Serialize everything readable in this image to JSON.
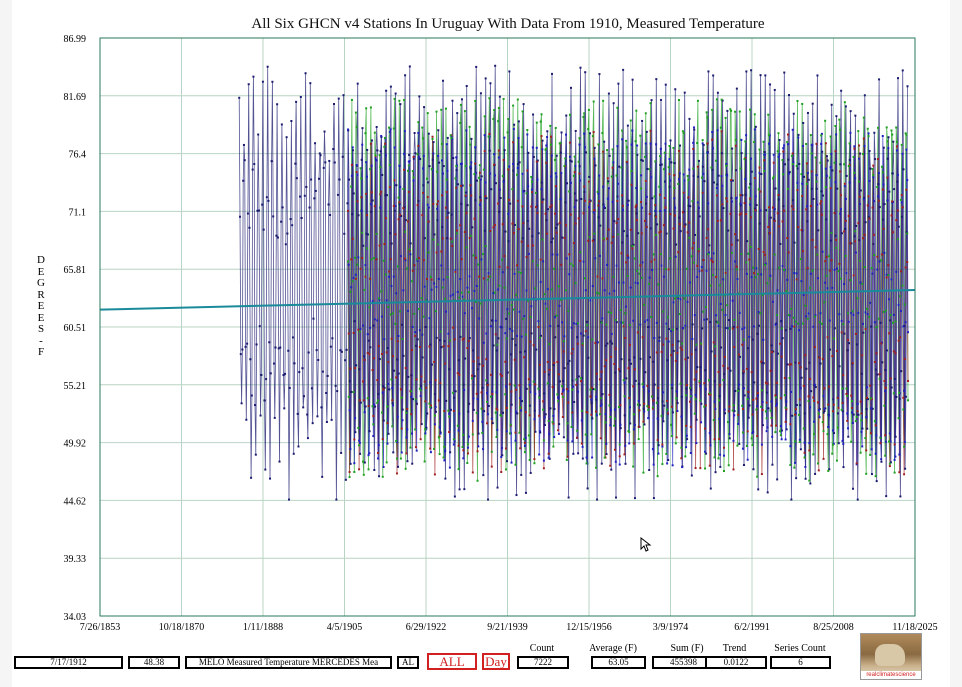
{
  "chart_data": {
    "type": "line",
    "title": "All Six GHCN v4 Stations In Uruguay With Data From 1910, Measured Temperature",
    "ylabel": "DEGREES-F",
    "xlabel": "",
    "ylim": [
      34.03,
      86.99
    ],
    "yticks": [
      "86.99",
      "81.69",
      "76.4",
      "71.1",
      "65.81",
      "60.51",
      "55.21",
      "49.92",
      "44.62",
      "39.33",
      "34.03"
    ],
    "xticks": [
      "7/26/1853",
      "10/18/1870",
      "1/11/1888",
      "4/5/1905",
      "6/29/1922",
      "9/21/1939",
      "12/15/1956",
      "3/9/1974",
      "6/2/1991",
      "8/25/2008",
      "11/18/2025"
    ],
    "xlim": [
      "1853-07-26",
      "2025-11-18"
    ],
    "grid": true,
    "series": [
      {
        "color": "#1a1a70",
        "start": "1883-01-01",
        "end": "2024-06-01",
        "min": 44.7,
        "max": 84.5
      },
      {
        "color": "#2020c0",
        "start": "1906-01-01",
        "end": "2024-06-01",
        "min": 46.0,
        "max": 80.5
      },
      {
        "color": "#a02020",
        "start": "1906-01-01",
        "end": "2024-06-01",
        "min": 47.0,
        "max": 78.5
      },
      {
        "color": "#20a020",
        "start": "1906-01-01",
        "end": "2024-06-01",
        "min": 45.0,
        "max": 83.0
      }
    ],
    "trend": {
      "color": "#1a8a9a",
      "start_value": 62.1,
      "end_value": 63.9
    }
  },
  "footer": {
    "date": "7/17/1912",
    "value": "48.38",
    "series_name": "MELO Measured Temperature MERCEDES Mea",
    "al": "AL",
    "all_btn": "ALL",
    "day_btn": "Day",
    "count_label": "Count",
    "count": "7222",
    "average_label": "Average (F)",
    "average": "63.05",
    "sum_label": "Sum (F)",
    "sum": "455398",
    "trend_label": "Trend",
    "trend": "0.0122",
    "series_count_label": "Series Count",
    "series_count": "6",
    "logo_text": "realclimatescience"
  },
  "icons": {
    "cursor": "mouse-pointer-icon",
    "logo": "dog-logo-icon"
  }
}
